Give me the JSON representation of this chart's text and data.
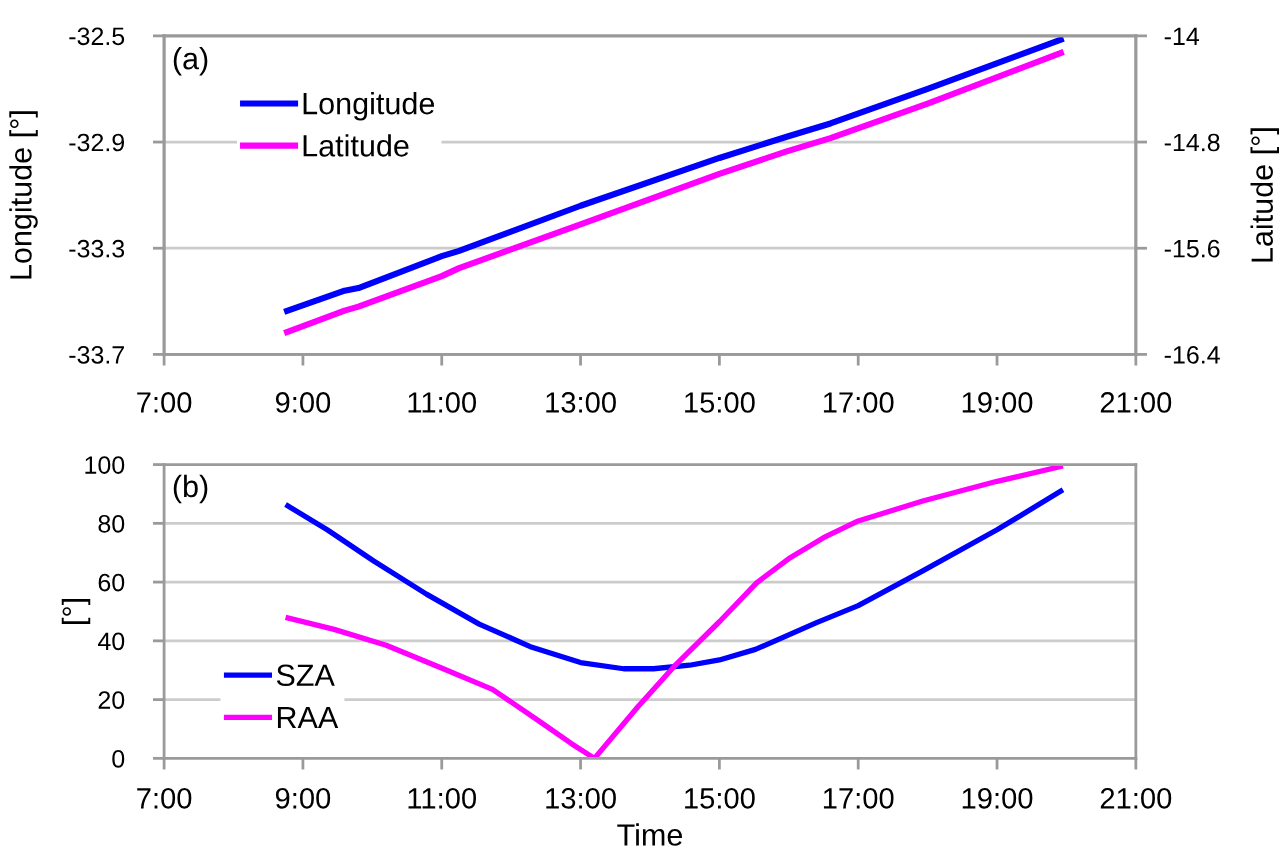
{
  "chart_data": [
    {
      "type": "line",
      "ylabel": "Longitude [°]",
      "y2label": "Laitude [°]",
      "annotations": [
        "(a)"
      ],
      "series": [
        {
          "name": "Longitude",
          "color": "#0000ff",
          "x": [
            8.73,
            9.6,
            9.8,
            11.0,
            11.25,
            13.0,
            15.0,
            15.97,
            16.6,
            18.0,
            19.96
          ],
          "values": [
            -33.54,
            -33.46,
            -33.45,
            -33.33,
            -33.31,
            -33.14,
            -32.96,
            -32.88,
            -32.83,
            -32.7,
            -32.51
          ]
        },
        {
          "name": "Latitude",
          "color": "#ff00ff",
          "axis": "y2",
          "x": [
            8.73,
            9.6,
            9.8,
            11.0,
            11.25,
            13.0,
            15.0,
            15.97,
            16.6,
            18.0,
            19.96
          ],
          "values": [
            -16.24,
            -16.07,
            -16.04,
            -15.81,
            -15.75,
            -15.42,
            -15.04,
            -14.87,
            -14.77,
            -14.51,
            -14.12
          ]
        }
      ],
      "xlim": [
        7,
        21
      ],
      "xticks": [
        {
          "value": 7,
          "label": "7:00"
        },
        {
          "value": 9,
          "label": "9:00"
        },
        {
          "value": 11,
          "label": "11:00"
        },
        {
          "value": 13,
          "label": "13:00"
        },
        {
          "value": 15,
          "label": "15:00"
        },
        {
          "value": 17,
          "label": "17:00"
        },
        {
          "value": 19,
          "label": "19:00"
        },
        {
          "value": 21,
          "label": "21:00"
        }
      ],
      "ylim": [
        -33.7,
        -32.5
      ],
      "yticks": [
        -33.7,
        -33.3,
        -32.9,
        -32.5
      ],
      "y2lim": [
        -16.4,
        -14
      ],
      "y2ticks": [
        -16.4,
        -15.6,
        -14.8,
        -14
      ],
      "grid": "y",
      "legend": "top left",
      "line_style": "solid"
    },
    {
      "type": "line",
      "xlabel": "Time",
      "ylabel": "[°]",
      "annotations": [
        "(b)"
      ],
      "series": [
        {
          "name": "SZA",
          "color": "#0000ff",
          "x": [
            8.75,
            9.35,
            10.02,
            10.78,
            11.54,
            12.3,
            13.0,
            13.62,
            14.05,
            14.57,
            15.0,
            15.52,
            16.4,
            17.0,
            17.93,
            19.0,
            19.95
          ],
          "values": [
            86.4,
            77.8,
            67.2,
            55.9,
            45.7,
            37.8,
            32.6,
            30.5,
            30.5,
            31.7,
            33.5,
            37.1,
            46.2,
            52,
            63.8,
            77.8,
            91.4
          ]
        },
        {
          "name": "RAA",
          "color": "#ff00ff",
          "x": [
            8.75,
            9.45,
            10.2,
            10.97,
            11.73,
            12.39,
            12.87,
            13.2,
            13.82,
            14.38,
            15.0,
            15.54,
            16.02,
            16.5,
            17.0,
            17.93,
            19.0,
            19.95
          ],
          "values": [
            48,
            43.9,
            38.5,
            31,
            23.5,
            12.9,
            5,
            0,
            17.4,
            32.1,
            46.5,
            59.8,
            68.3,
            75.1,
            80.8,
            87.6,
            94.3,
            99.5
          ]
        }
      ],
      "xlim": [
        7,
        21
      ],
      "xticks": [
        {
          "value": 7,
          "label": "7:00"
        },
        {
          "value": 9,
          "label": "9:00"
        },
        {
          "value": 11,
          "label": "11:00"
        },
        {
          "value": 13,
          "label": "13:00"
        },
        {
          "value": 15,
          "label": "15:00"
        },
        {
          "value": 17,
          "label": "17:00"
        },
        {
          "value": 19,
          "label": "19:00"
        },
        {
          "value": 21,
          "label": "21:00"
        }
      ],
      "ylim": [
        0,
        100
      ],
      "yticks": [
        0,
        20,
        40,
        60,
        80,
        100
      ],
      "grid": "y",
      "legend": "bottom left",
      "line_style": "solid"
    }
  ]
}
